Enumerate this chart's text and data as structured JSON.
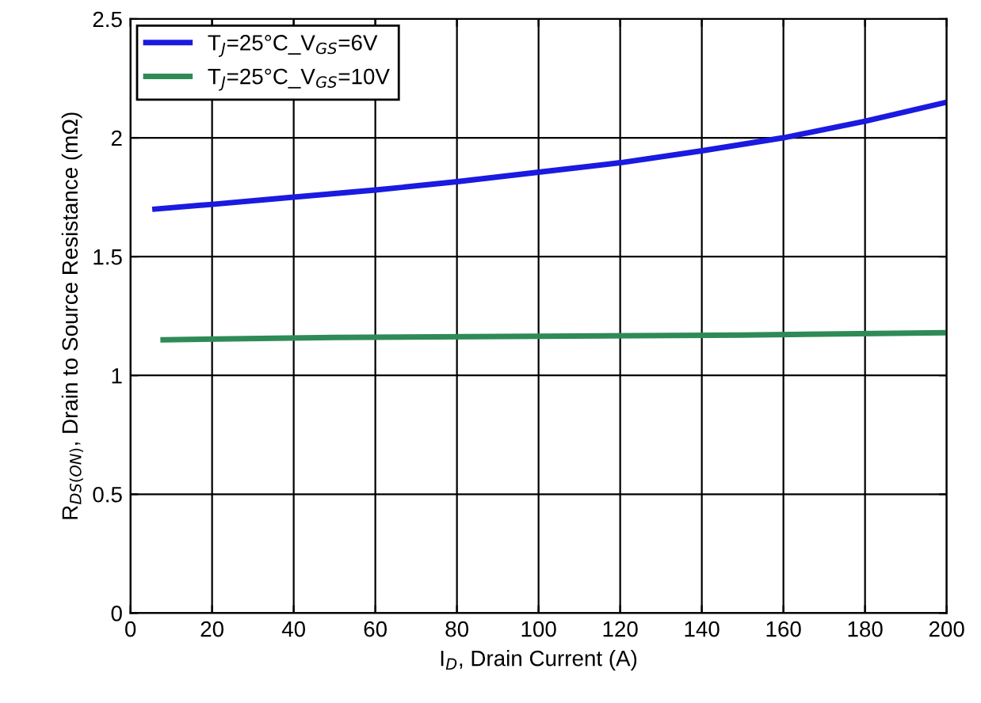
{
  "chart_data": {
    "type": "line",
    "xlabel": "I$_{D}$, Drain Current (A)",
    "ylabel": "R$_{DS(ON)}$, Drain to Source Resistance (mΩ)",
    "xlim": [
      0,
      200
    ],
    "xticks": [
      0,
      20,
      40,
      60,
      80,
      100,
      120,
      140,
      160,
      180,
      200
    ],
    "ylim": [
      0,
      2.5
    ],
    "yticks": [
      0,
      0.5,
      1,
      1.5,
      2,
      2.5
    ],
    "grid": true,
    "legend": "top left",
    "line_style": "solid",
    "marker": "none",
    "series": [
      {
        "name": "T$_{J}$=25°C_V$_{GS}$=6V",
        "color": "#1a1ae0",
        "x": [
          6,
          20,
          40,
          60,
          80,
          100,
          120,
          140,
          160,
          180,
          200
        ],
        "values": [
          1.7,
          1.72,
          1.75,
          1.78,
          1.815,
          1.855,
          1.895,
          1.945,
          2.0,
          2.07,
          2.15
        ]
      },
      {
        "name": "T$_{J}$=25°C_V$_{GS}$=10V",
        "color": "#2e8b57",
        "x": [
          8,
          50,
          100,
          150,
          200
        ],
        "values": [
          1.15,
          1.16,
          1.165,
          1.17,
          1.18
        ]
      }
    ]
  }
}
